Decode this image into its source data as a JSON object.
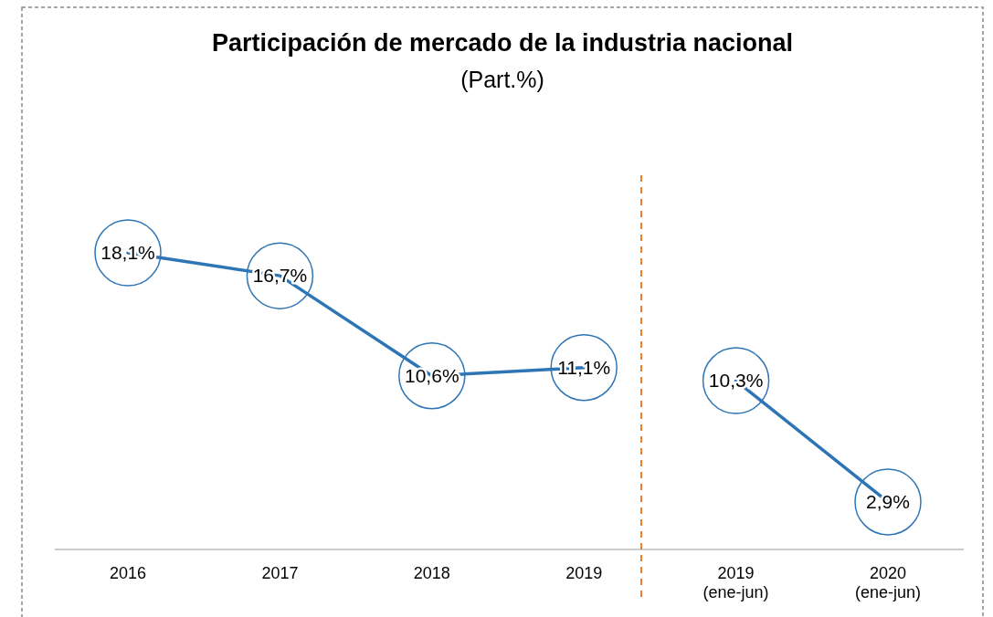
{
  "chart_data": {
    "type": "line",
    "title": "Participación de mercado de la industria nacional",
    "subtitle": "(Part.%)",
    "categories": [
      "2016",
      "2017",
      "2018",
      "2019",
      "2019\n(ene-jun)",
      "2020\n(ene-jun)"
    ],
    "series": [
      {
        "color": "#2e75b6",
        "values": [
          18.1,
          16.7,
          10.6,
          11.1,
          null,
          null
        ],
        "value_labels": [
          "18,1%",
          "16,7%",
          "10,6%",
          "11,1%",
          null,
          null
        ]
      },
      {
        "color": "#2e75b6",
        "values": [
          null,
          null,
          null,
          null,
          10.3,
          2.9
        ],
        "value_labels": [
          null,
          null,
          null,
          null,
          "10,3%",
          "2,9%"
        ]
      }
    ],
    "tick_labels": "x",
    "grid": false
  }
}
